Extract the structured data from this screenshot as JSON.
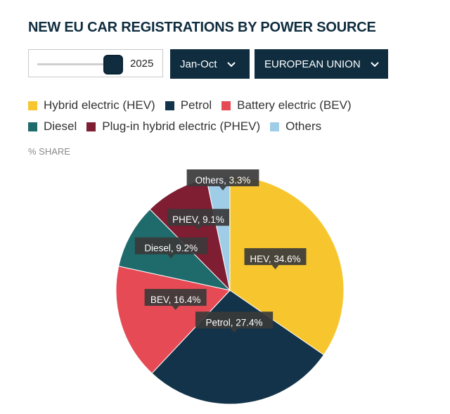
{
  "title": "NEW EU CAR REGISTRATIONS BY POWER SOURCE",
  "controls": {
    "year_value": "2025",
    "year_position": 1.0,
    "period_label": "Jan-Oct",
    "region_label": "EUROPEAN UNION",
    "chevron_icon": "chevron-down-icon"
  },
  "share_label": "% SHARE",
  "colors": {
    "hev": "#f7c62f",
    "petrol": "#123349",
    "bev": "#e64a55",
    "diesel": "#1f6a6b",
    "phev": "#7f1d32",
    "others": "#9fcde8",
    "tooltip": "#3a3a3a"
  },
  "chart_data": {
    "type": "pie",
    "title": "NEW EU CAR REGISTRATIONS BY POWER SOURCE",
    "unit": "% SHARE",
    "legend_position": "top",
    "slices": [
      {
        "key": "hev",
        "legend": "Hybrid electric (HEV)",
        "value": 34.6,
        "label": "HEV, 34.6%"
      },
      {
        "key": "petrol",
        "legend": "Petrol",
        "value": 27.4,
        "label": "Petrol, 27.4%"
      },
      {
        "key": "bev",
        "legend": "Battery electric (BEV)",
        "value": 16.4,
        "label": "BEV, 16.4%"
      },
      {
        "key": "diesel",
        "legend": "Diesel",
        "value": 9.2,
        "label": "Diesel, 9.2%"
      },
      {
        "key": "phev",
        "legend": "Plug-in hybrid electric (PHEV)",
        "value": 9.1,
        "label": "PHEV, 9.1%"
      },
      {
        "key": "others",
        "legend": "Others",
        "value": 3.3,
        "label": "Others, 3.3%"
      }
    ]
  }
}
